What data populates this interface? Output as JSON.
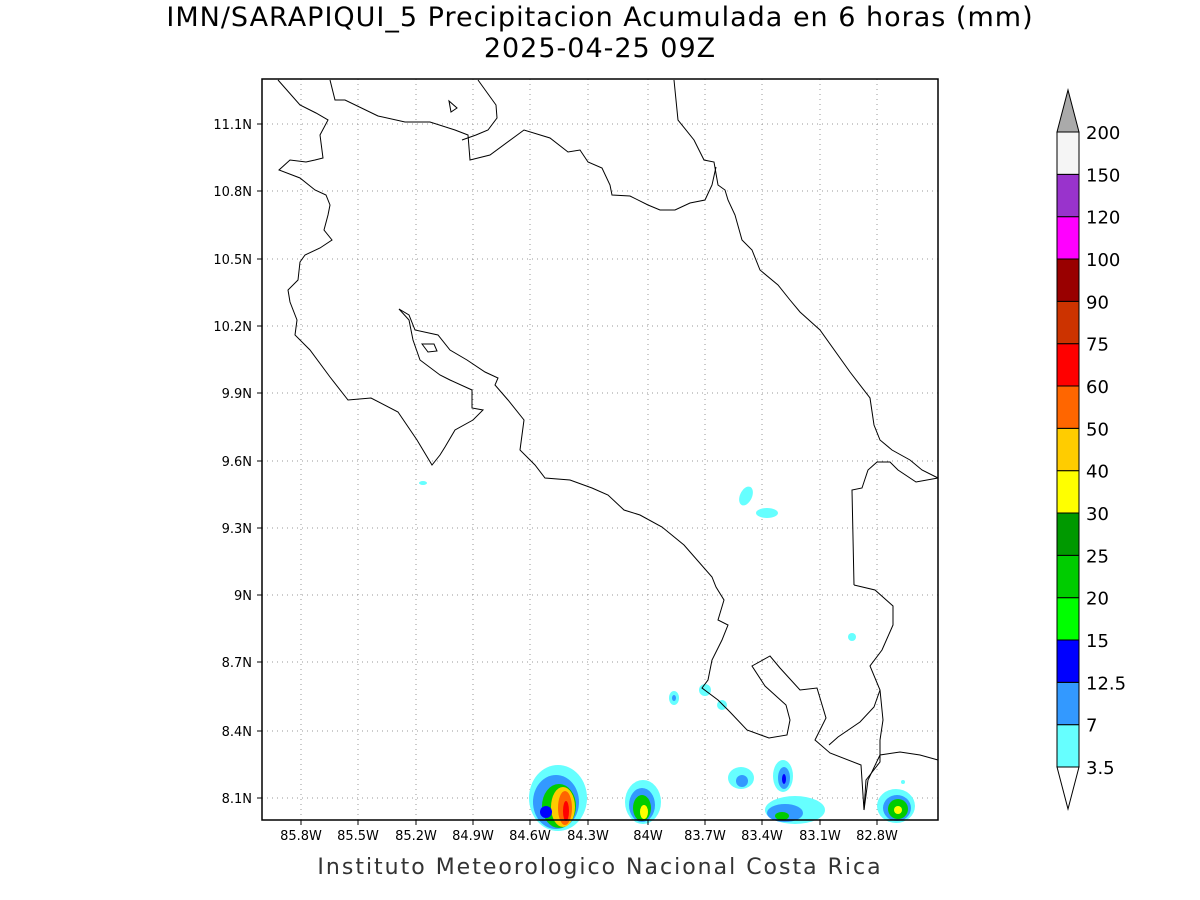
{
  "title": {
    "line1": "IMN/SARAPIQUI_5 Precipitacion Acumulada en 6 horas (mm)",
    "line2": "2025-04-25 09Z"
  },
  "footer": "Instituto Meteorologico Nacional Costa Rica",
  "map": {
    "lon_range": [
      -86.3,
      -82.1
    ],
    "lat_range": [
      7.99,
      11.3
    ],
    "x_ticks": [
      "85.8W",
      "85.5W",
      "85.2W",
      "84.9W",
      "84.6W",
      "84.3W",
      "84W",
      "83.7W",
      "83.4W",
      "83.1W",
      "82.8W"
    ],
    "y_ticks": [
      "11.1N",
      "10.8N",
      "10.5N",
      "10.2N",
      "9.9N",
      "9.6N",
      "9.3N",
      "9N",
      "8.7N",
      "8.4N",
      "8.1N"
    ],
    "grid": "dotted"
  },
  "colorbar": {
    "labels": [
      "3.5",
      "7",
      "12.5",
      "15",
      "20",
      "25",
      "30",
      "40",
      "50",
      "60",
      "75",
      "90",
      "100",
      "120",
      "150",
      "200"
    ],
    "colors": [
      "#66ffff",
      "#3399ff",
      "#0000ff",
      "#00ff00",
      "#00cc00",
      "#009900",
      "#ffff00",
      "#ffcc00",
      "#ff6600",
      "#ff0000",
      "#cc3300",
      "#990000",
      "#ff00ff",
      "#9933cc",
      "#f5f5f5"
    ],
    "top_arrow_color": "#aaaaaa",
    "bottom_arrow_color": "#ffffff"
  }
}
